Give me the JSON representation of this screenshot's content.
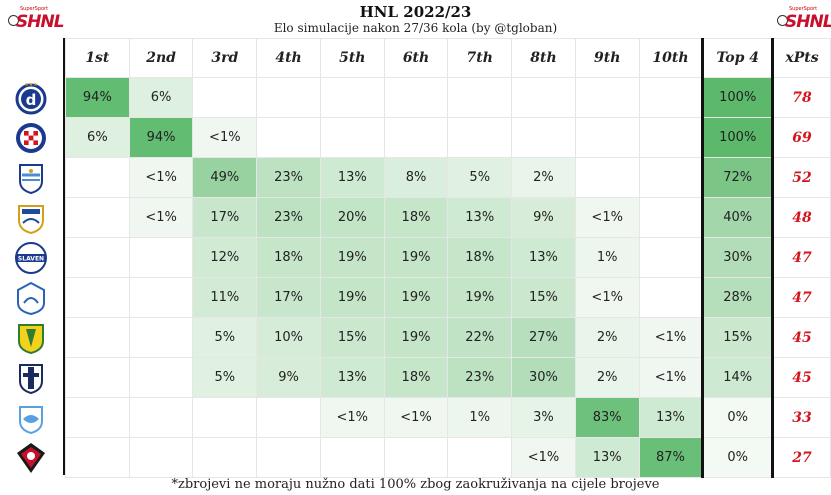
{
  "title": "HNL 2022/23",
  "subtitle": "Elo simulacije nakon 27/36 kola (by @tgloban)",
  "logo": {
    "word": "SHNL",
    "tag": "SuperSport"
  },
  "columns": [
    "1st",
    "2nd",
    "3rd",
    "4th",
    "5th",
    "6th",
    "7th",
    "8th",
    "9th",
    "10th",
    "Top 4",
    "xPts"
  ],
  "teams": [
    {
      "crest": "dinamo-zagreb-crest",
      "cells": [
        "94%",
        "6%",
        "",
        "",
        "",
        "",
        "",
        "",
        "",
        "",
        "100%",
        "78"
      ]
    },
    {
      "crest": "hajduk-split-crest",
      "cells": [
        "6%",
        "94%",
        "<1%",
        "",
        "",
        "",
        "",
        "",
        "",
        "",
        "100%",
        "69"
      ]
    },
    {
      "crest": "osijek-crest",
      "cells": [
        "",
        "<1%",
        "49%",
        "23%",
        "13%",
        "8%",
        "5%",
        "2%",
        "",
        "",
        "72%",
        "52"
      ]
    },
    {
      "crest": "rijeka-crest",
      "cells": [
        "",
        "<1%",
        "17%",
        "23%",
        "20%",
        "18%",
        "13%",
        "9%",
        "<1%",
        "",
        "40%",
        "48"
      ]
    },
    {
      "crest": "slaven-belupo-crest",
      "cells": [
        "",
        "",
        "12%",
        "18%",
        "19%",
        "19%",
        "18%",
        "13%",
        "1%",
        "",
        "30%",
        "47"
      ]
    },
    {
      "crest": "varazdin-crest",
      "cells": [
        "",
        "",
        "11%",
        "17%",
        "19%",
        "19%",
        "19%",
        "15%",
        "<1%",
        "",
        "28%",
        "47"
      ]
    },
    {
      "crest": "istra-1961-crest",
      "cells": [
        "",
        "",
        "5%",
        "10%",
        "15%",
        "19%",
        "22%",
        "27%",
        "2%",
        "<1%",
        "15%",
        "45"
      ]
    },
    {
      "crest": "lokomotiva-crest",
      "cells": [
        "",
        "",
        "5%",
        "9%",
        "13%",
        "18%",
        "23%",
        "30%",
        "2%",
        "<1%",
        "14%",
        "45"
      ]
    },
    {
      "crest": "sibenik-crest",
      "cells": [
        "",
        "",
        "",
        "",
        "<1%",
        "<1%",
        "1%",
        "3%",
        "83%",
        "13%",
        "0%",
        "33"
      ]
    },
    {
      "crest": "gorica-crest",
      "cells": [
        "",
        "",
        "",
        "",
        "",
        "",
        "",
        "<1%",
        "13%",
        "87%",
        "0%",
        "27"
      ]
    }
  ],
  "footnote": "*zbrojevi ne moraju nužno dati 100% zbog zaokruživanja na cijele brojeve",
  "chart_data": {
    "type": "table",
    "title": "HNL 2022/23",
    "subtitle": "Elo simulacije nakon 27/36 kola (by @tgloban)",
    "columns": [
      "1st",
      "2nd",
      "3rd",
      "4th",
      "5th",
      "6th",
      "7th",
      "8th",
      "9th",
      "10th",
      "Top 4",
      "xPts"
    ],
    "rows": [
      [
        "94%",
        "6%",
        "",
        "",
        "",
        "",
        "",
        "",
        "",
        "",
        "100%",
        "78"
      ],
      [
        "6%",
        "94%",
        "<1%",
        "",
        "",
        "",
        "",
        "",
        "",
        "",
        "100%",
        "69"
      ],
      [
        "",
        "<1%",
        "49%",
        "23%",
        "13%",
        "8%",
        "5%",
        "2%",
        "",
        "",
        "72%",
        "52"
      ],
      [
        "",
        "<1%",
        "17%",
        "23%",
        "20%",
        "18%",
        "13%",
        "9%",
        "<1%",
        "",
        "40%",
        "48"
      ],
      [
        "",
        "",
        "12%",
        "18%",
        "19%",
        "19%",
        "18%",
        "13%",
        "1%",
        "",
        "30%",
        "47"
      ],
      [
        "",
        "",
        "11%",
        "17%",
        "19%",
        "19%",
        "19%",
        "15%",
        "<1%",
        "",
        "28%",
        "47"
      ],
      [
        "",
        "",
        "5%",
        "10%",
        "15%",
        "19%",
        "22%",
        "27%",
        "2%",
        "<1%",
        "15%",
        "45"
      ],
      [
        "",
        "",
        "5%",
        "9%",
        "13%",
        "18%",
        "23%",
        "30%",
        "2%",
        "<1%",
        "14%",
        "45"
      ],
      [
        "",
        "",
        "",
        "",
        "<1%",
        "<1%",
        "1%",
        "3%",
        "83%",
        "13%",
        "0%",
        "33"
      ],
      [
        "",
        "",
        "",
        "",
        "",
        "",
        "",
        "<1%",
        "13%",
        "87%",
        "0%",
        "27"
      ]
    ],
    "colors": {
      "high": "#5cb96b",
      "low": "#f3f9f3",
      "xpts": "#d2151e"
    }
  }
}
